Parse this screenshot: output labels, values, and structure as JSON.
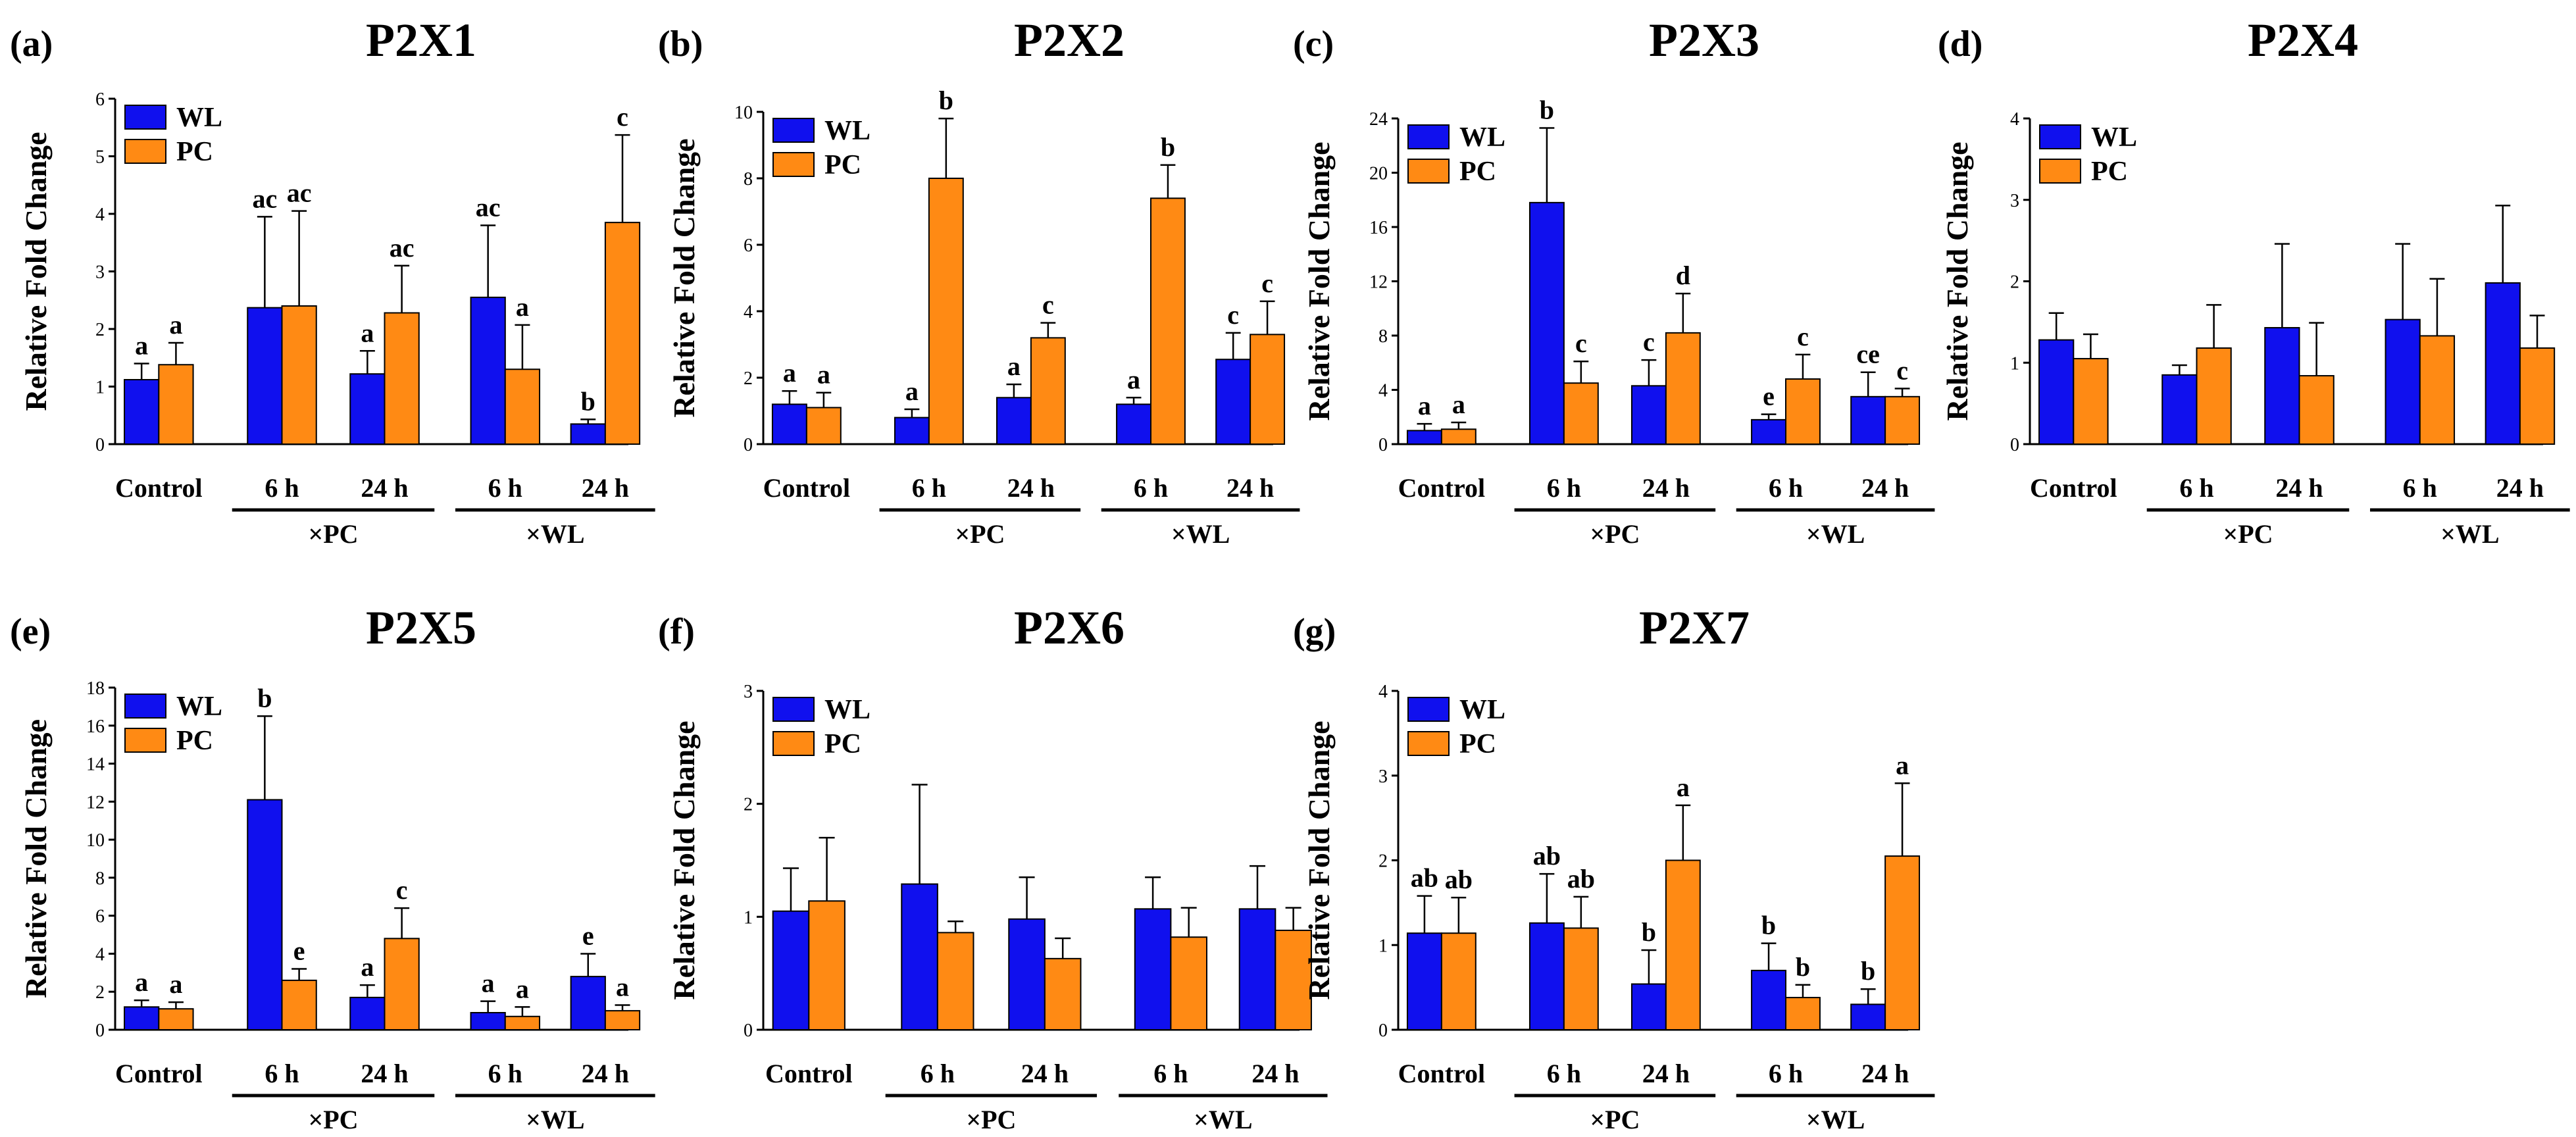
{
  "colors": {
    "WL": "#1010ee",
    "PC": "#ff8a14",
    "axis": "#000000"
  },
  "chart_data": [
    {
      "type": "bar",
      "panel": "(a)",
      "title": "P2X1",
      "ylabel": "Relative Fold Change",
      "ylim": [
        0,
        6
      ],
      "yticks": [
        0,
        1,
        2,
        3,
        4,
        5,
        6
      ],
      "categories": [
        "Control",
        "6 h",
        "24 h",
        "6 h",
        "24 h"
      ],
      "groups": [
        {
          "label": "×PC",
          "from": 1,
          "to": 2
        },
        {
          "label": "×WL",
          "from": 3,
          "to": 4
        }
      ],
      "legend": [
        "WL",
        "PC"
      ],
      "series": [
        {
          "name": "WL",
          "values": [
            1.12,
            2.37,
            1.22,
            2.55,
            0.35
          ],
          "errors": [
            0.28,
            1.58,
            0.4,
            1.25,
            0.08
          ],
          "labels": [
            "a",
            "ac",
            "a",
            "ac",
            "b"
          ]
        },
        {
          "name": "PC",
          "values": [
            1.38,
            2.4,
            2.28,
            1.3,
            3.85
          ],
          "errors": [
            0.38,
            1.65,
            0.82,
            0.77,
            1.52
          ],
          "labels": [
            "a",
            "ac",
            "ac",
            "a",
            "c"
          ]
        }
      ]
    },
    {
      "type": "bar",
      "panel": "(b)",
      "title": "P2X2",
      "ylabel": "Relative Fold Change",
      "ylim": [
        0,
        10
      ],
      "yticks": [
        0,
        2,
        4,
        6,
        8,
        10
      ],
      "categories": [
        "Control",
        "6 h",
        "24 h",
        "6 h",
        "24 h"
      ],
      "groups": [
        {
          "label": "×PC",
          "from": 1,
          "to": 2
        },
        {
          "label": "×WL",
          "from": 3,
          "to": 4
        }
      ],
      "legend": [
        "WL",
        "PC"
      ],
      "series": [
        {
          "name": "WL",
          "values": [
            1.2,
            0.8,
            1.4,
            1.2,
            2.55
          ],
          "errors": [
            0.4,
            0.25,
            0.4,
            0.2,
            0.8
          ],
          "labels": [
            "a",
            "a",
            "a",
            "a",
            "c"
          ]
        },
        {
          "name": "PC",
          "values": [
            1.1,
            8.0,
            3.2,
            7.4,
            3.3
          ],
          "errors": [
            0.45,
            1.8,
            0.45,
            1.0,
            1.0
          ],
          "labels": [
            "a",
            "b",
            "c",
            "b",
            "c"
          ]
        }
      ]
    },
    {
      "type": "bar",
      "panel": "(c)",
      "title": "P2X3",
      "ylabel": "Relative Fold Change",
      "ylim": [
        0,
        24
      ],
      "yticks": [
        0,
        4,
        8,
        12,
        16,
        20,
        24
      ],
      "categories": [
        "Control",
        "6 h",
        "24 h",
        "6 h",
        "24 h"
      ],
      "groups": [
        {
          "label": "×PC",
          "from": 1,
          "to": 2
        },
        {
          "label": "×WL",
          "from": 3,
          "to": 4
        }
      ],
      "legend": [
        "WL",
        "PC"
      ],
      "series": [
        {
          "name": "WL",
          "values": [
            1.0,
            17.8,
            4.3,
            1.8,
            3.5
          ],
          "errors": [
            0.5,
            5.5,
            1.9,
            0.4,
            1.8
          ],
          "labels": [
            "a",
            "b",
            "c",
            "e",
            "ce"
          ]
        },
        {
          "name": "PC",
          "values": [
            1.1,
            4.5,
            8.2,
            4.8,
            3.5
          ],
          "errors": [
            0.5,
            1.6,
            2.9,
            1.8,
            0.6
          ],
          "labels": [
            "a",
            "c",
            "d",
            "c",
            "c"
          ]
        }
      ]
    },
    {
      "type": "bar",
      "panel": "(d)",
      "title": "P2X4",
      "ylabel": "Relative Fold Change",
      "ylim": [
        0,
        4
      ],
      "yticks": [
        0,
        1,
        2,
        3,
        4
      ],
      "categories": [
        "Control",
        "6 h",
        "24 h",
        "6 h",
        "24 h"
      ],
      "groups": [
        {
          "label": "×PC",
          "from": 1,
          "to": 2
        },
        {
          "label": "×WL",
          "from": 3,
          "to": 4
        }
      ],
      "legend": [
        "WL",
        "PC"
      ],
      "series": [
        {
          "name": "WL",
          "values": [
            1.28,
            0.85,
            1.43,
            1.53,
            1.98
          ],
          "errors": [
            0.33,
            0.12,
            1.03,
            0.93,
            0.95
          ],
          "labels": [
            "",
            "",
            "",
            "",
            ""
          ]
        },
        {
          "name": "PC",
          "values": [
            1.05,
            1.18,
            0.84,
            1.33,
            1.18
          ],
          "errors": [
            0.3,
            0.53,
            0.65,
            0.7,
            0.4
          ],
          "labels": [
            "",
            "",
            "",
            "",
            ""
          ]
        }
      ]
    },
    {
      "type": "bar",
      "panel": "(e)",
      "title": "P2X5",
      "ylabel": "Relative Fold Change",
      "ylim": [
        0,
        18
      ],
      "yticks": [
        0,
        2,
        4,
        6,
        8,
        10,
        12,
        14,
        16,
        18
      ],
      "categories": [
        "Control",
        "6 h",
        "24 h",
        "6 h",
        "24 h"
      ],
      "groups": [
        {
          "label": "×PC",
          "from": 1,
          "to": 2
        },
        {
          "label": "×WL",
          "from": 3,
          "to": 4
        }
      ],
      "legend": [
        "WL",
        "PC"
      ],
      "series": [
        {
          "name": "WL",
          "values": [
            1.2,
            12.1,
            1.7,
            0.9,
            2.8
          ],
          "errors": [
            0.35,
            4.4,
            0.65,
            0.6,
            1.2
          ],
          "labels": [
            "a",
            "b",
            "a",
            "a",
            "e"
          ]
        },
        {
          "name": "PC",
          "values": [
            1.1,
            2.6,
            4.8,
            0.7,
            1.0
          ],
          "errors": [
            0.35,
            0.6,
            1.6,
            0.5,
            0.3
          ],
          "labels": [
            "a",
            "e",
            "c",
            "a",
            "a"
          ]
        }
      ]
    },
    {
      "type": "bar",
      "panel": "(f)",
      "title": "P2X6",
      "ylabel": "Relative Fold Change",
      "ylim": [
        0,
        3
      ],
      "yticks": [
        0,
        1,
        2,
        3
      ],
      "categories": [
        "Control",
        "6 h",
        "24 h",
        "6 h",
        "24 h"
      ],
      "groups": [
        {
          "label": "×PC",
          "from": 1,
          "to": 2
        },
        {
          "label": "×WL",
          "from": 3,
          "to": 4
        }
      ],
      "legend": [
        "WL",
        "PC"
      ],
      "series": [
        {
          "name": "WL",
          "values": [
            1.05,
            1.29,
            0.98,
            1.07,
            1.07
          ],
          "errors": [
            0.38,
            0.88,
            0.37,
            0.28,
            0.38
          ],
          "labels": [
            "",
            "",
            "",
            "",
            ""
          ]
        },
        {
          "name": "PC",
          "values": [
            1.14,
            0.86,
            0.63,
            0.82,
            0.88
          ],
          "errors": [
            0.56,
            0.1,
            0.18,
            0.26,
            0.2
          ],
          "labels": [
            "",
            "",
            "",
            "",
            ""
          ]
        }
      ]
    },
    {
      "type": "bar",
      "panel": "(g)",
      "title": "P2X7",
      "ylabel": "Relative Fold Change",
      "ylim": [
        0,
        4
      ],
      "yticks": [
        0,
        1,
        2,
        3,
        4
      ],
      "categories": [
        "Control",
        "6 h",
        "24 h",
        "6 h",
        "24 h"
      ],
      "groups": [
        {
          "label": "×PC",
          "from": 1,
          "to": 2
        },
        {
          "label": "×WL",
          "from": 3,
          "to": 4
        }
      ],
      "legend": [
        "WL",
        "PC"
      ],
      "series": [
        {
          "name": "WL",
          "values": [
            1.14,
            1.26,
            0.54,
            0.7,
            0.3
          ],
          "errors": [
            0.44,
            0.58,
            0.4,
            0.32,
            0.18
          ],
          "labels": [
            "ab",
            "ab",
            "b",
            "b",
            "b"
          ]
        },
        {
          "name": "PC",
          "values": [
            1.14,
            1.2,
            2.0,
            0.38,
            2.05
          ],
          "errors": [
            0.42,
            0.37,
            0.65,
            0.15,
            0.86
          ],
          "labels": [
            "ab",
            "ab",
            "a",
            "b",
            "a"
          ]
        }
      ]
    }
  ]
}
